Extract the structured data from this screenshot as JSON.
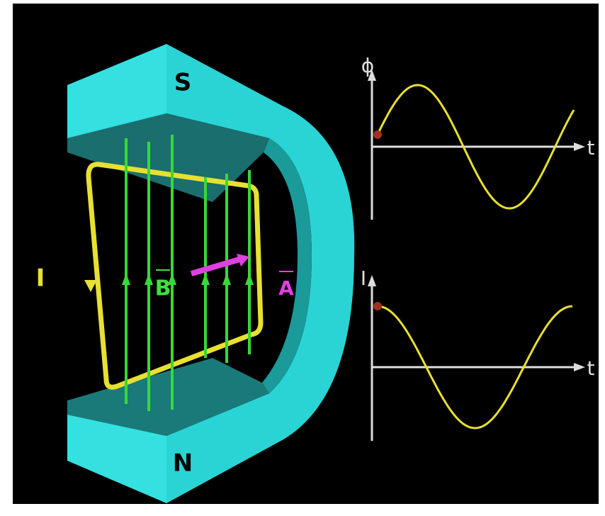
{
  "magnet": {
    "south": "S",
    "north": "N"
  },
  "current_label": "I",
  "field_label": "B",
  "area_label": "A",
  "graph_top": {
    "y_label": "ϕ",
    "x_label": "t"
  },
  "graph_bottom": {
    "y_label": "I",
    "x_label": "t"
  }
}
